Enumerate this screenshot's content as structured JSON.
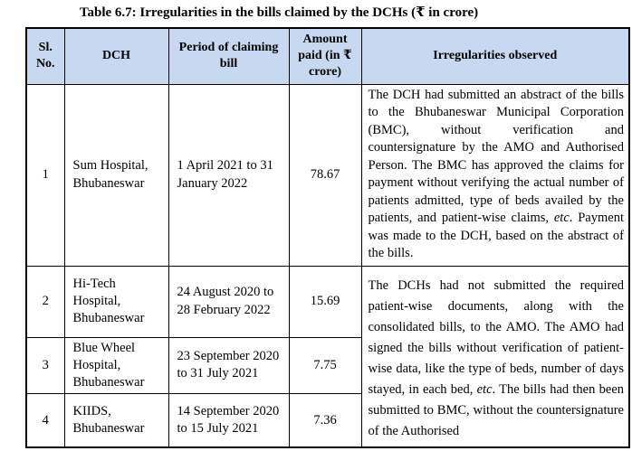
{
  "title": "Table 6.7: Irregularities in the bills claimed by the DCHs (₹ in crore)",
  "colors": {
    "header_bg": "#c7d9f0",
    "border": "#000000",
    "text": "#000000",
    "page_bg": "#ffffff"
  },
  "table": {
    "headers": {
      "sl_no": "Sl. No.",
      "dch": "DCH",
      "period": "Period of claiming bill",
      "amount": "Amount paid (in ₹ crore)",
      "irregularities": "Irregularities observed"
    },
    "rows": [
      {
        "sl": "1",
        "dch": "Sum Hospital, Bhubaneswar",
        "period": "1 April 2021 to 31 January 2022",
        "amount": "78.67"
      },
      {
        "sl": "2",
        "dch": "Hi-Tech Hospital, Bhubaneswar",
        "period": "24 August 2020 to 28 February 2022",
        "amount": "15.69"
      },
      {
        "sl": "3",
        "dch": "Blue Wheel Hospital, Bhubaneswar",
        "period": "23 September 2020 to 31 July 2021",
        "amount": "7.75"
      },
      {
        "sl": "4",
        "dch": "KIIDS, Bhubaneswar",
        "period": "14 September 2020 to 15 July 2021",
        "amount": "7.36"
      }
    ],
    "irregularities": [
      {
        "segments": [
          {
            "text": "The DCH had submitted an abstract of the bills to the Bhubaneswar Municipal Corporation (BMC), without verification and countersignature by the AMO and Authorised Person. The BMC has approved the claims for payment without verifying the actual number of patients admitted, type of beds availed by the patients, and patient-wise claims, ",
            "italic": false
          },
          {
            "text": "etc",
            "italic": true
          },
          {
            "text": ". Payment was made to the DCH, based on the abstract of the bills.",
            "italic": false
          }
        ]
      },
      {
        "segments": [
          {
            "text": "The DCHs had not submitted the required patient-wise documents, along with the consolidated bills, to the AMO. The AMO had signed the bills without verification of patient-wise data, like the type of beds, number of days stayed, in each bed, ",
            "italic": false
          },
          {
            "text": "etc",
            "italic": true
          },
          {
            "text": ". The bills had then been submitted to BMC, without the countersignature of the Authorised",
            "italic": false
          }
        ]
      }
    ]
  }
}
